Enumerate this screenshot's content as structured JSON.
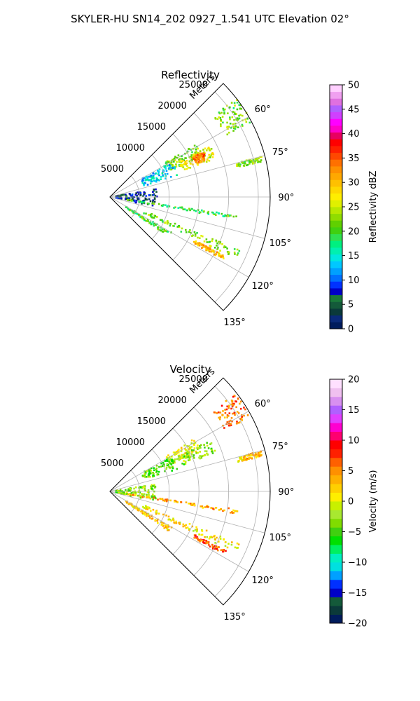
{
  "figure": {
    "title": "SKYLER-HU  SN14_202  0927_1.541 UTC Elevation 02°"
  },
  "chart_data": [
    {
      "type": "heatmap",
      "projection": "polar-sector",
      "title": "Reflectivity",
      "radial_label": "Meters",
      "radial_ticks": [
        5000,
        10000,
        15000,
        20000,
        25000
      ],
      "radial_tick_labels": [
        "5000",
        "10000",
        "15000",
        "20000",
        "25000"
      ],
      "rlim": [
        0,
        27000
      ],
      "azimuth_ticks": [
        60,
        75,
        90,
        105,
        120,
        135
      ],
      "azimuth_tick_labels": [
        "60°",
        "75°",
        "90°",
        "105°",
        "120°",
        "135°"
      ],
      "azimuth_range": [
        45,
        135
      ],
      "grid": true,
      "colorbar": {
        "label": "Reflectivity dBZ",
        "range": [
          0,
          50
        ],
        "ticks": [
          0,
          5,
          10,
          15,
          20,
          25,
          30,
          35,
          40,
          45,
          50
        ],
        "tick_labels": [
          "0",
          "5",
          "10",
          "15",
          "20",
          "25",
          "30",
          "35",
          "40",
          "45",
          "50"
        ]
      },
      "features": [
        {
          "az": [
            52,
            62
          ],
          "r": [
            22000,
            27000
          ],
          "value": 22
        },
        {
          "az": [
            58,
            66
          ],
          "r": [
            11000,
            17000
          ],
          "value": 22
        },
        {
          "az": [
            63,
            70
          ],
          "r": [
            13000,
            19000
          ],
          "value": 26
        },
        {
          "az": [
            64,
            69
          ],
          "r": [
            15500,
            17500
          ],
          "value": 33
        },
        {
          "az": [
            60,
            72
          ],
          "r": [
            6000,
            12000
          ],
          "value": 14
        },
        {
          "az": [
            80,
            102
          ],
          "r": [
            1000,
            8000
          ],
          "value": 6
        },
        {
          "az": [
            98,
            100
          ],
          "r": [
            3000,
            22000
          ],
          "value": 20
        },
        {
          "az": [
            112,
            116
          ],
          "r": [
            6000,
            24000
          ],
          "value": 22
        },
        {
          "az": [
            117,
            119
          ],
          "r": [
            16000,
            22000
          ],
          "value": 30
        },
        {
          "az": [
            75,
            77
          ],
          "r": [
            22000,
            26500
          ],
          "value": 22
        },
        {
          "az": [
            120,
            124
          ],
          "r": [
            3000,
            12000
          ],
          "value": 20
        }
      ]
    },
    {
      "type": "heatmap",
      "projection": "polar-sector",
      "title": "Velocity",
      "radial_label": "Meters",
      "radial_ticks": [
        5000,
        10000,
        15000,
        20000,
        25000
      ],
      "radial_tick_labels": [
        "5000",
        "10000",
        "15000",
        "20000",
        "25000"
      ],
      "rlim": [
        0,
        27000
      ],
      "azimuth_ticks": [
        60,
        75,
        90,
        105,
        120,
        135
      ],
      "azimuth_tick_labels": [
        "60°",
        "75°",
        "90°",
        "105°",
        "120°",
        "135°"
      ],
      "azimuth_range": [
        45,
        135
      ],
      "grid": true,
      "colorbar": {
        "label": "Velocity (m/s)",
        "range": [
          -20,
          20
        ],
        "ticks": [
          -20,
          -15,
          -10,
          -5,
          0,
          5,
          10,
          15,
          20
        ],
        "tick_labels": [
          "−20",
          "−15",
          "−10",
          "−5",
          "0",
          "5",
          "10",
          "15",
          "20"
        ]
      },
      "features": [
        {
          "az": [
            52,
            62
          ],
          "r": [
            22000,
            27000
          ],
          "value": 6
        },
        {
          "az": [
            58,
            66
          ],
          "r": [
            11000,
            17000
          ],
          "value": 0
        },
        {
          "az": [
            63,
            70
          ],
          "r": [
            13000,
            19000
          ],
          "value": -3
        },
        {
          "az": [
            60,
            72
          ],
          "r": [
            6000,
            12000
          ],
          "value": -4
        },
        {
          "az": [
            80,
            102
          ],
          "r": [
            1000,
            8000
          ],
          "value": -3
        },
        {
          "az": [
            98,
            100
          ],
          "r": [
            3000,
            22000
          ],
          "value": 4
        },
        {
          "az": [
            112,
            116
          ],
          "r": [
            6000,
            24000
          ],
          "value": 1
        },
        {
          "az": [
            117,
            119
          ],
          "r": [
            16000,
            22000
          ],
          "value": 7
        },
        {
          "az": [
            75,
            77
          ],
          "r": [
            22000,
            26500
          ],
          "value": 3
        },
        {
          "az": [
            120,
            124
          ],
          "r": [
            3000,
            12000
          ],
          "value": 2
        }
      ]
    }
  ]
}
